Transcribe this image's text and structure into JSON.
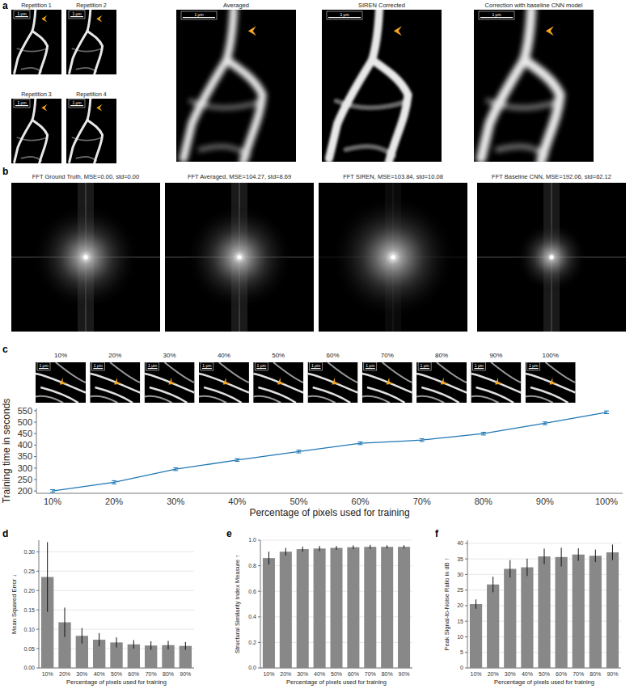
{
  "figure": {
    "panel_a": {
      "letter": "a",
      "small_titles": [
        "Repetition 1",
        "Repetition 2",
        "Repetition 3",
        "Repetition 4"
      ],
      "large_titles": [
        "Averaged",
        "SIREN Corrected",
        "Correction with baseline CNN model"
      ],
      "scale_bar": "1 μm"
    },
    "panel_b": {
      "letter": "b",
      "titles": [
        "FFT Ground Truth, MSE=0.00, std=0.00",
        "FFT Averaged, MSE=104.27, std=8.69",
        "FFT SIREN, MSE=103.84, std=10.08",
        "FFT Baseline CNN, MSE=192.06, std=62.12"
      ]
    },
    "panel_c": {
      "letter": "c",
      "labels": [
        "10%",
        "20%",
        "30%",
        "40%",
        "50%",
        "60%",
        "70%",
        "80%",
        "90%",
        "100%"
      ],
      "scale_bar": "1 μm"
    },
    "letters": [
      "d",
      "e",
      "f"
    ]
  },
  "chart_data": [
    {
      "type": "line",
      "x_label": "Percentage of pixels used for training",
      "y_label": "Training time in seconds",
      "categories": [
        "10%",
        "20%",
        "30%",
        "40%",
        "50%",
        "60%",
        "70%",
        "80%",
        "90%",
        "100%"
      ],
      "values": [
        200,
        238,
        295,
        335,
        372,
        408,
        422,
        450,
        495,
        543
      ],
      "errors": [
        6,
        7,
        6,
        6,
        6,
        6,
        6,
        6,
        6,
        6
      ],
      "color": "#1f77b4",
      "ylim": [
        190,
        560
      ],
      "yticks": [
        200,
        250,
        300,
        350,
        400,
        450,
        500,
        550
      ],
      "grid": false
    },
    {
      "type": "bar",
      "x_label": "Percentage of pixels used for training",
      "y_label": "Mean Squared Error ↓",
      "categories": [
        "10%",
        "20%",
        "30%",
        "40%",
        "50%",
        "60%",
        "70%",
        "80%",
        "90%"
      ],
      "values": [
        0.235,
        0.118,
        0.083,
        0.073,
        0.066,
        0.061,
        0.058,
        0.059,
        0.057
      ],
      "errors": [
        0.09,
        0.038,
        0.02,
        0.017,
        0.013,
        0.011,
        0.011,
        0.011,
        0.01
      ],
      "color": "#888888",
      "ylim": [
        0,
        0.33
      ],
      "yticks": [
        {
          "value": 0,
          "label": "0.00"
        },
        {
          "value": 0.05,
          "label": "0.05"
        },
        {
          "value": 0.1,
          "label": "0.10"
        },
        {
          "value": 0.15,
          "label": "0.15"
        },
        {
          "value": 0.2,
          "label": "0.20"
        },
        {
          "value": 0.25,
          "label": "0.25"
        },
        {
          "value": 0.3,
          "label": "0.30"
        }
      ],
      "grid": true
    },
    {
      "type": "bar",
      "x_label": "Percentage of pixels used for training",
      "y_label": "Structural Similarity Index Measure ↑",
      "categories": [
        "10%",
        "20%",
        "30%",
        "40%",
        "50%",
        "60%",
        "70%",
        "80%",
        "90%"
      ],
      "values": [
        0.86,
        0.91,
        0.93,
        0.935,
        0.94,
        0.945,
        0.948,
        0.948,
        0.948
      ],
      "errors": [
        0.05,
        0.03,
        0.02,
        0.02,
        0.015,
        0.015,
        0.015,
        0.013,
        0.013
      ],
      "color": "#888888",
      "ylim": [
        0,
        1.0
      ],
      "yticks": [
        {
          "value": 0,
          "label": "0.0"
        },
        {
          "value": 0.2,
          "label": "0.2"
        },
        {
          "value": 0.4,
          "label": "0.4"
        },
        {
          "value": 0.6,
          "label": "0.6"
        },
        {
          "value": 0.8,
          "label": "0.8"
        },
        {
          "value": 1.0,
          "label": "1.0"
        }
      ],
      "grid": true
    },
    {
      "type": "bar",
      "x_label": "Percentage of pixels used for training",
      "y_label": "Peak Signal-to-Noise Ratio in dB ↑",
      "categories": [
        "10%",
        "20%",
        "30%",
        "40%",
        "50%",
        "60%",
        "70%",
        "80%",
        "90%"
      ],
      "values": [
        20.5,
        26.8,
        31.8,
        32.3,
        35.8,
        35.6,
        36.4,
        36.0,
        37.1
      ],
      "errors": [
        1.5,
        2.5,
        2.8,
        2.8,
        2.5,
        3.0,
        2.0,
        2.0,
        2.5
      ],
      "color": "#888888",
      "ylim": [
        0,
        41
      ],
      "yticks": [
        0,
        5,
        10,
        15,
        20,
        25,
        30,
        35,
        40
      ],
      "grid": true
    }
  ]
}
